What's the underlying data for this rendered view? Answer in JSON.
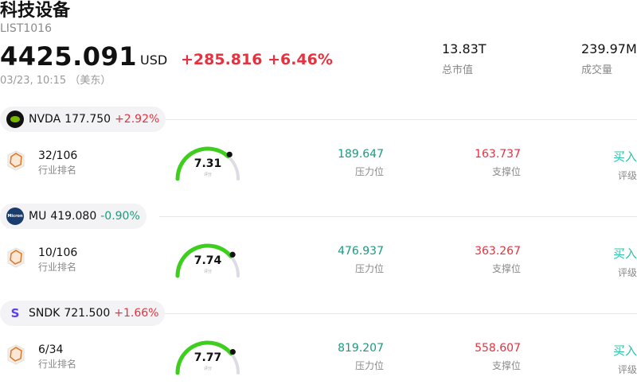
{
  "header": {
    "title": "科技设备",
    "code": "LIST1016",
    "price": "4425.091",
    "currency": "USD",
    "change": "+285.816 +6.46%",
    "time": "03/23, 10:15 （美东）"
  },
  "stats": {
    "market_cap_value": "13.83T",
    "market_cap_label": "总市值",
    "volume_value": "239.97M",
    "volume_label": "成交量"
  },
  "stocks": [
    {
      "symbol": "NVDA",
      "price": "177.750",
      "change": "+2.92%",
      "direction": "up",
      "logo": "nvidia-logo",
      "rank": "32/106",
      "rank_label": "行业排名",
      "score": "7.31",
      "score_fraction": 0.731,
      "score_label": "评分",
      "resistance": "189.647",
      "resistance_label": "压力位",
      "support": "163.737",
      "support_label": "支撑位",
      "rating": "买入",
      "rating_label": "评级"
    },
    {
      "symbol": "MU",
      "price": "419.080",
      "change": "-0.90%",
      "direction": "down",
      "logo": "micron-logo",
      "logo_text": "Micron",
      "rank": "10/106",
      "rank_label": "行业排名",
      "score": "7.74",
      "score_fraction": 0.774,
      "score_label": "评分",
      "resistance": "476.937",
      "resistance_label": "压力位",
      "support": "363.267",
      "support_label": "支撑位",
      "rating": "买入",
      "rating_label": "评级"
    },
    {
      "symbol": "SNDK",
      "price": "721.500",
      "change": "+1.66%",
      "direction": "up",
      "logo": "sandisk-logo",
      "logo_text": "S",
      "rank": "6/34",
      "rank_label": "行业排名",
      "score": "7.77",
      "score_fraction": 0.777,
      "score_label": "评分",
      "resistance": "819.207",
      "resistance_label": "压力位",
      "support": "558.607",
      "support_label": "支撑位",
      "rating": "买入",
      "rating_label": "评级"
    }
  ],
  "colors": {
    "up": "#e8313e",
    "down": "#1a9b7e",
    "gauge_fill": "#3ecf1e",
    "gauge_track": "#dcdce6",
    "rating": "#2cc3a8"
  }
}
